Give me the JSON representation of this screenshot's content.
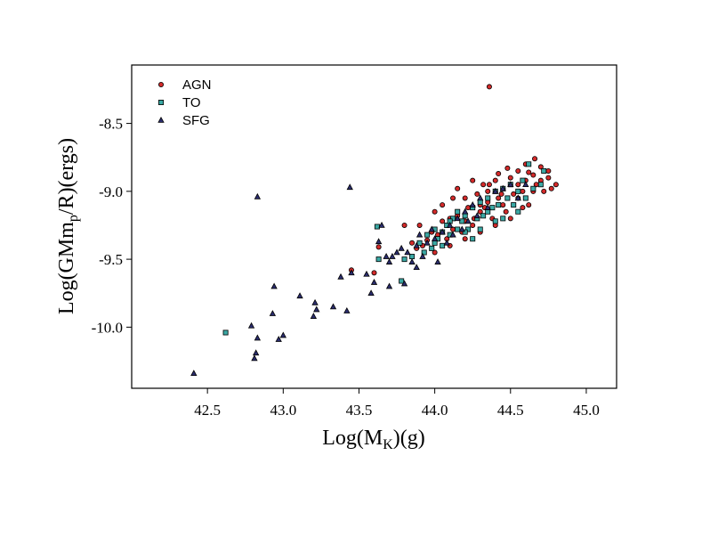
{
  "chart_data": {
    "type": "scatter",
    "xlabel": {
      "main": "Log(M",
      "sub": "K",
      "tail": ")(g)"
    },
    "ylabel": {
      "main": "Log(GMm",
      "sub": "p",
      "tail": "/R)(ergs)"
    },
    "xlim": [
      42.0,
      45.2
    ],
    "ylim": [
      -10.45,
      -8.07
    ],
    "xticks": [
      42.5,
      43.0,
      43.5,
      44.0,
      44.5,
      45.0
    ],
    "xtick_labels": [
      "42.5",
      "43.0",
      "43.5",
      "44.0",
      "44.5",
      "45.0"
    ],
    "yticks": [
      -8.5,
      -9.0,
      -9.5,
      -10.0
    ],
    "ytick_labels": [
      "-8.5",
      "-9.0",
      "-9.5",
      "-10.0"
    ],
    "grid": false,
    "legend_position": "top-left",
    "series": [
      {
        "name": "AGN",
        "marker": "circle",
        "color": "#d42a2a",
        "points": [
          [
            44.36,
            -8.23
          ],
          [
            43.45,
            -9.58
          ],
          [
            43.63,
            -9.41
          ],
          [
            43.6,
            -9.6
          ],
          [
            43.8,
            -9.25
          ],
          [
            43.9,
            -9.25
          ],
          [
            44.0,
            -9.15
          ],
          [
            44.05,
            -9.1
          ],
          [
            44.1,
            -9.2
          ],
          [
            44.12,
            -9.05
          ],
          [
            44.15,
            -9.18
          ],
          [
            44.2,
            -9.22
          ],
          [
            44.22,
            -9.12
          ],
          [
            44.25,
            -9.25
          ],
          [
            44.28,
            -9.02
          ],
          [
            44.3,
            -9.15
          ],
          [
            44.32,
            -8.95
          ],
          [
            44.35,
            -9.08
          ],
          [
            44.38,
            -9.2
          ],
          [
            44.4,
            -8.92
          ],
          [
            44.42,
            -9.05
          ],
          [
            44.45,
            -8.98
          ],
          [
            44.47,
            -9.15
          ],
          [
            44.5,
            -8.9
          ],
          [
            44.52,
            -9.02
          ],
          [
            44.55,
            -8.85
          ],
          [
            44.58,
            -9.0
          ],
          [
            44.6,
            -8.92
          ],
          [
            44.62,
            -9.1
          ],
          [
            44.65,
            -8.88
          ],
          [
            44.67,
            -8.95
          ],
          [
            44.7,
            -8.82
          ],
          [
            44.72,
            -9.0
          ],
          [
            44.75,
            -8.9
          ],
          [
            44.77,
            -8.98
          ],
          [
            44.8,
            -8.95
          ],
          [
            44.66,
            -8.76
          ],
          [
            44.6,
            -8.8
          ],
          [
            44.48,
            -8.83
          ],
          [
            44.42,
            -8.87
          ],
          [
            44.36,
            -8.95
          ],
          [
            44.3,
            -9.1
          ],
          [
            44.26,
            -9.2
          ],
          [
            44.2,
            -9.05
          ],
          [
            44.18,
            -9.3
          ],
          [
            44.12,
            -9.28
          ],
          [
            44.08,
            -9.35
          ],
          [
            44.05,
            -9.22
          ],
          [
            44.02,
            -9.32
          ],
          [
            43.98,
            -9.3
          ],
          [
            43.95,
            -9.36
          ],
          [
            43.92,
            -9.4
          ],
          [
            43.88,
            -9.42
          ],
          [
            43.85,
            -9.38
          ],
          [
            44.15,
            -8.98
          ],
          [
            44.25,
            -8.92
          ],
          [
            44.35,
            -9.0
          ],
          [
            44.45,
            -9.1
          ],
          [
            44.55,
            -9.05
          ],
          [
            44.65,
            -9.0
          ],
          [
            44.75,
            -8.85
          ],
          [
            44.5,
            -9.2
          ],
          [
            44.4,
            -9.25
          ],
          [
            44.3,
            -9.3
          ],
          [
            44.2,
            -9.35
          ],
          [
            44.1,
            -9.4
          ],
          [
            44.0,
            -9.45
          ],
          [
            44.55,
            -8.95
          ],
          [
            44.62,
            -8.86
          ],
          [
            44.7,
            -8.92
          ],
          [
            44.58,
            -9.12
          ],
          [
            44.44,
            -9.02
          ],
          [
            44.33,
            -9.12
          ]
        ]
      },
      {
        "name": "TO",
        "marker": "square",
        "color": "#3aa8a4",
        "points": [
          [
            42.62,
            -10.04
          ],
          [
            43.62,
            -9.26
          ],
          [
            43.63,
            -9.5
          ],
          [
            43.78,
            -9.66
          ],
          [
            43.8,
            -9.5
          ],
          [
            43.85,
            -9.48
          ],
          [
            43.9,
            -9.38
          ],
          [
            43.95,
            -9.32
          ],
          [
            44.0,
            -9.28
          ],
          [
            44.02,
            -9.35
          ],
          [
            44.05,
            -9.3
          ],
          [
            44.08,
            -9.25
          ],
          [
            44.1,
            -9.32
          ],
          [
            44.12,
            -9.2
          ],
          [
            44.15,
            -9.28
          ],
          [
            44.18,
            -9.22
          ],
          [
            44.2,
            -9.18
          ],
          [
            44.22,
            -9.28
          ],
          [
            44.25,
            -9.12
          ],
          [
            44.28,
            -9.2
          ],
          [
            44.3,
            -9.08
          ],
          [
            44.32,
            -9.18
          ],
          [
            44.35,
            -9.05
          ],
          [
            44.38,
            -9.12
          ],
          [
            44.4,
            -9.0
          ],
          [
            44.42,
            -9.1
          ],
          [
            44.45,
            -8.98
          ],
          [
            44.48,
            -9.05
          ],
          [
            44.5,
            -8.95
          ],
          [
            44.52,
            -9.1
          ],
          [
            44.55,
            -9.0
          ],
          [
            44.58,
            -8.92
          ],
          [
            44.6,
            -9.05
          ],
          [
            44.62,
            -8.8
          ],
          [
            44.7,
            -8.95
          ],
          [
            44.72,
            -8.85
          ],
          [
            44.65,
            -8.98
          ],
          [
            44.3,
            -9.28
          ],
          [
            44.25,
            -9.35
          ],
          [
            44.1,
            -9.22
          ],
          [
            44.0,
            -9.38
          ],
          [
            43.98,
            -9.42
          ],
          [
            44.15,
            -9.15
          ],
          [
            44.35,
            -9.15
          ],
          [
            44.45,
            -9.2
          ],
          [
            44.55,
            -9.15
          ],
          [
            44.2,
            -9.3
          ],
          [
            44.05,
            -9.4
          ],
          [
            43.93,
            -9.45
          ],
          [
            44.4,
            -9.22
          ]
        ]
      },
      {
        "name": "SFG",
        "marker": "triangle",
        "color": "#2b2d6e",
        "points": [
          [
            42.41,
            -10.34
          ],
          [
            42.79,
            -9.99
          ],
          [
            42.81,
            -10.23
          ],
          [
            42.82,
            -10.19
          ],
          [
            42.83,
            -9.04
          ],
          [
            42.83,
            -10.08
          ],
          [
            42.93,
            -9.9
          ],
          [
            42.94,
            -9.7
          ],
          [
            42.97,
            -10.09
          ],
          [
            43.0,
            -10.06
          ],
          [
            43.11,
            -9.77
          ],
          [
            43.2,
            -9.92
          ],
          [
            43.21,
            -9.82
          ],
          [
            43.22,
            -9.87
          ],
          [
            43.33,
            -9.85
          ],
          [
            43.38,
            -9.63
          ],
          [
            43.42,
            -9.88
          ],
          [
            43.44,
            -8.97
          ],
          [
            43.45,
            -9.6
          ],
          [
            43.55,
            -9.61
          ],
          [
            43.58,
            -9.75
          ],
          [
            43.6,
            -9.67
          ],
          [
            43.63,
            -9.37
          ],
          [
            43.65,
            -9.25
          ],
          [
            43.7,
            -9.52
          ],
          [
            43.72,
            -9.48
          ],
          [
            43.75,
            -9.45
          ],
          [
            43.78,
            -9.42
          ],
          [
            43.82,
            -9.45
          ],
          [
            43.85,
            -9.52
          ],
          [
            43.88,
            -9.4
          ],
          [
            43.9,
            -9.32
          ],
          [
            43.92,
            -9.48
          ],
          [
            43.95,
            -9.38
          ],
          [
            43.98,
            -9.28
          ],
          [
            44.0,
            -9.35
          ],
          [
            44.02,
            -9.52
          ],
          [
            44.05,
            -9.3
          ],
          [
            44.08,
            -9.38
          ],
          [
            44.1,
            -9.25
          ],
          [
            44.12,
            -9.32
          ],
          [
            44.15,
            -9.2
          ],
          [
            44.18,
            -9.28
          ],
          [
            44.2,
            -9.15
          ],
          [
            44.22,
            -9.22
          ],
          [
            44.25,
            -9.1
          ],
          [
            44.28,
            -9.18
          ],
          [
            44.3,
            -9.05
          ],
          [
            44.35,
            -9.12
          ],
          [
            44.4,
            -9.0
          ],
          [
            44.45,
            -8.98
          ],
          [
            44.5,
            -8.95
          ],
          [
            44.55,
            -9.05
          ],
          [
            44.6,
            -8.95
          ],
          [
            43.7,
            -9.7
          ],
          [
            43.8,
            -9.68
          ],
          [
            43.88,
            -9.56
          ],
          [
            43.68,
            -9.48
          ]
        ]
      }
    ]
  }
}
